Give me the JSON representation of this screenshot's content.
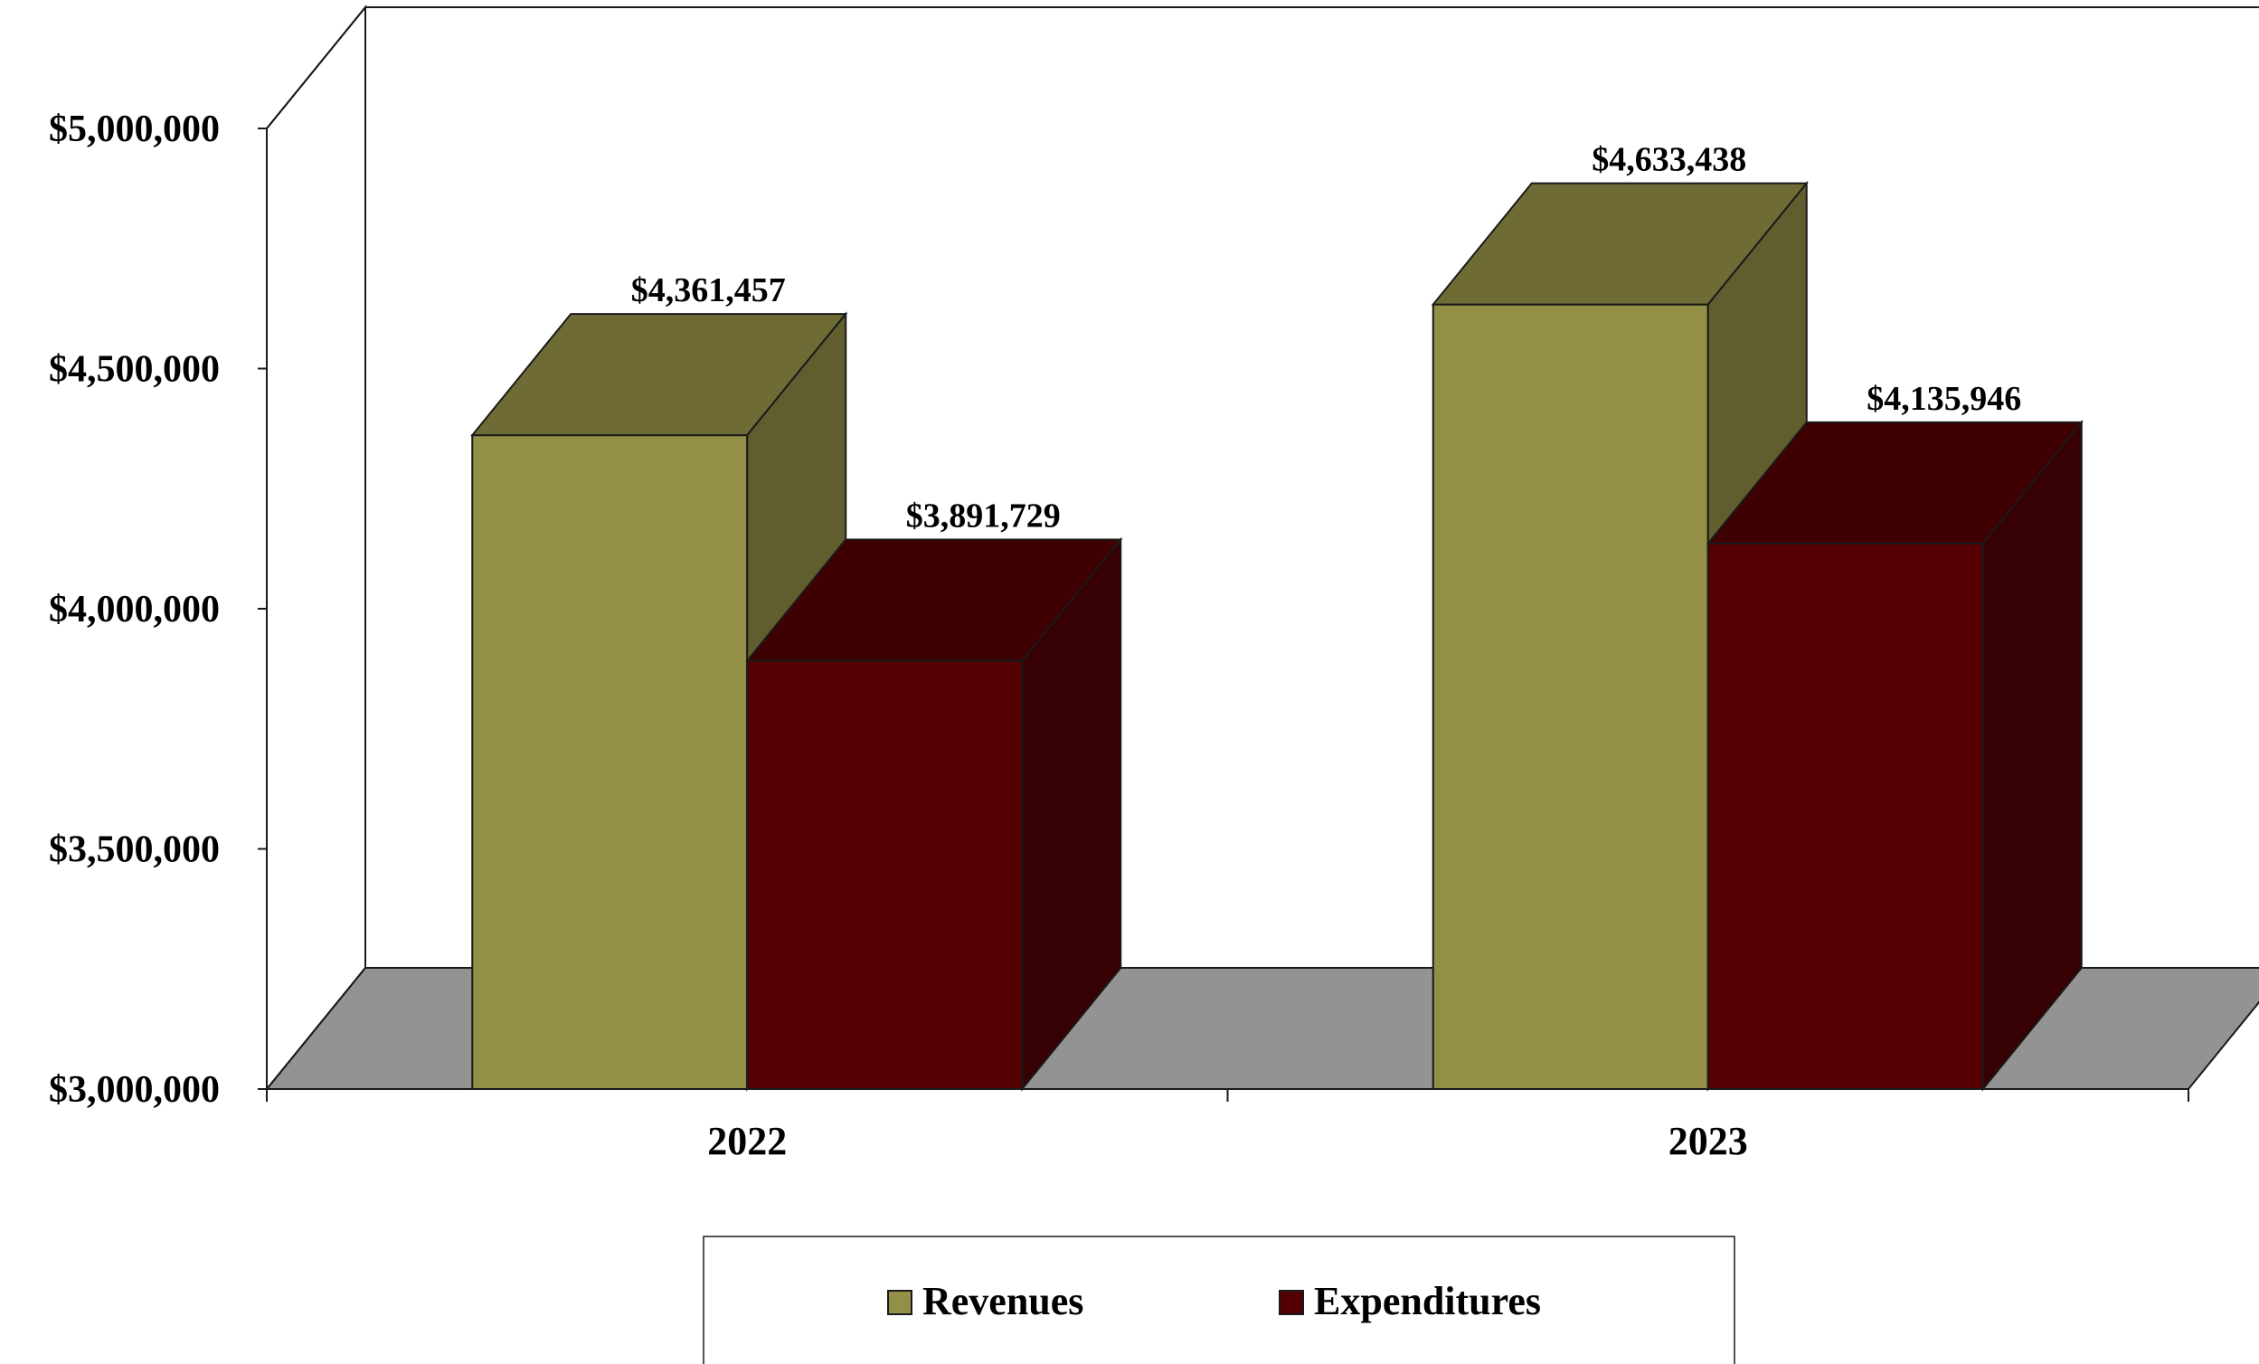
{
  "chart_data": {
    "type": "bar",
    "title": "",
    "xlabel": "",
    "ylabel": "",
    "categories": [
      "2022",
      "2023"
    ],
    "series": [
      {
        "name": "Revenues",
        "values": [
          4361457,
          4633438
        ],
        "labels": [
          "$4,361,457",
          "$4,633,438"
        ]
      },
      {
        "name": "Expenditures",
        "values": [
          3891729,
          4135946
        ],
        "labels": [
          "$3,891,729",
          "$4,135,946"
        ]
      }
    ],
    "ylim": [
      3000000,
      5000000
    ],
    "yticks": [
      3000000,
      3500000,
      4000000,
      4500000,
      5000000
    ],
    "ytick_labels": [
      "$3,000,000",
      "$3,500,000",
      "$4,000,000",
      "$4,500,000",
      "$5,000,000"
    ],
    "grid": false,
    "legend_position": "bottom",
    "three_d": true
  },
  "colors": {
    "revenues": "#948f47",
    "expenditures": "#540003",
    "floor": "#939393",
    "outline": "#1a1a1a"
  }
}
